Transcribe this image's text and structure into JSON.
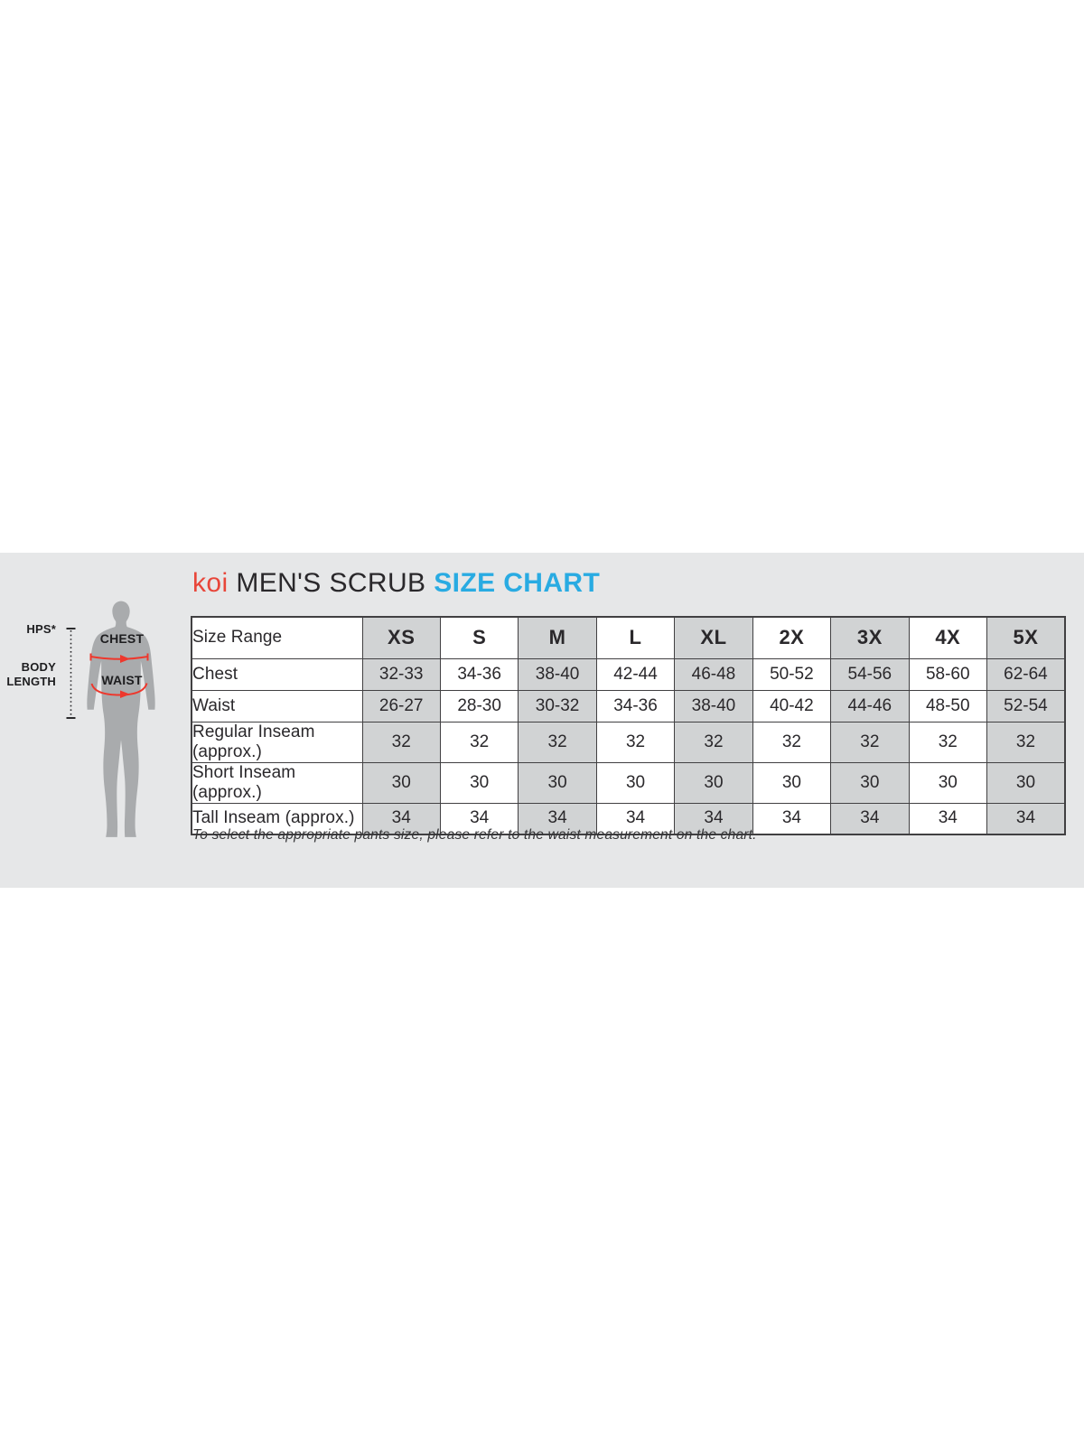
{
  "title": {
    "brand": "koi",
    "middle": "MEN'S SCRUB",
    "accent": "SIZE CHART"
  },
  "figure": {
    "hps_label": "HPS*",
    "body_length_line1": "BODY",
    "body_length_line2": "LENGTH",
    "chest_label": "CHEST",
    "waist_label": "WAIST"
  },
  "chart_data": {
    "type": "table",
    "title": "koi MEN'S SCRUB SIZE CHART",
    "columns": [
      "Size Range",
      "XS",
      "S",
      "M",
      "L",
      "XL",
      "2X",
      "3X",
      "4X",
      "5X"
    ],
    "rows": [
      {
        "label": "Chest",
        "values": [
          "32-33",
          "34-36",
          "38-40",
          "42-44",
          "46-48",
          "50-52",
          "54-56",
          "58-60",
          "62-64"
        ]
      },
      {
        "label": "Waist",
        "values": [
          "26-27",
          "28-30",
          "30-32",
          "34-36",
          "38-40",
          "40-42",
          "44-46",
          "48-50",
          "52-54"
        ]
      },
      {
        "label": "Regular Inseam (approx.)",
        "values": [
          "32",
          "32",
          "32",
          "32",
          "32",
          "32",
          "32",
          "32",
          "32"
        ]
      },
      {
        "label": "Short Inseam (approx.)",
        "values": [
          "30",
          "30",
          "30",
          "30",
          "30",
          "30",
          "30",
          "30",
          "30"
        ]
      },
      {
        "label": "Tall Inseam (approx.)",
        "values": [
          "34",
          "34",
          "34",
          "34",
          "34",
          "34",
          "34",
          "34",
          "34"
        ]
      }
    ],
    "shaded_columns": [
      "XS",
      "M",
      "XL",
      "3X",
      "5X"
    ],
    "legend_position": "none",
    "grid": true
  },
  "footnote": "To select the appropriate pants size, please refer to the waist measurement on the chart.",
  "colors": {
    "brand_red": "#e8463a",
    "accent_blue": "#29abe2",
    "text_dark": "#2a282b",
    "band_bg": "#e6e7e8",
    "cell_gray": "#d1d3d4",
    "cell_white": "#ffffff",
    "table_border": "#414042",
    "silhouette_gray": "#a9abad",
    "measure_red": "#ee372c",
    "figure_ink": "#2b2b2d"
  }
}
